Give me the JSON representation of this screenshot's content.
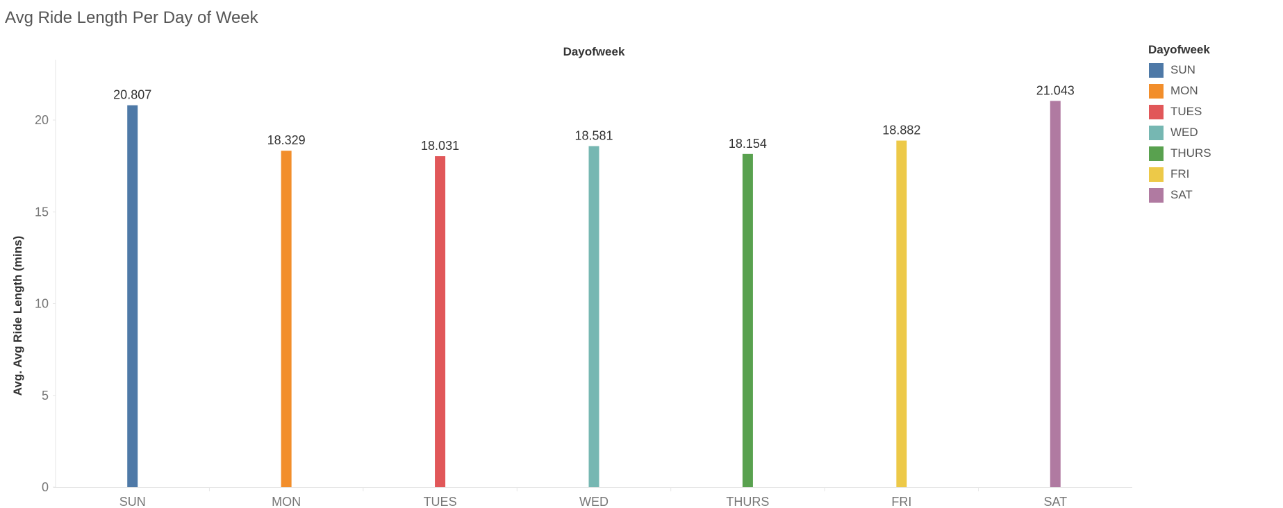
{
  "page": {
    "title": "Avg Ride Length Per Day of Week"
  },
  "colors": {
    "axis": "#e6e6e6",
    "tick_text": "#777777",
    "label_text": "#333333"
  },
  "chart_data": {
    "type": "bar",
    "title": "Avg Ride Length Per Day of Week",
    "column_header": "Dayofweek",
    "xlabel": "",
    "ylabel": "Avg. Avg Ride Length (mins)",
    "ylim": [
      0,
      23
    ],
    "yticks": [
      0,
      5,
      10,
      15,
      20
    ],
    "grid": false,
    "legend_position": "right",
    "categories": [
      "SUN",
      "MON",
      "TUES",
      "WED",
      "THURS",
      "FRI",
      "SAT"
    ],
    "values": [
      20.807,
      18.329,
      18.031,
      18.581,
      18.154,
      18.882,
      21.043
    ],
    "value_labels": [
      "20.807",
      "18.329",
      "18.031",
      "18.581",
      "18.154",
      "18.882",
      "21.043"
    ],
    "colors": [
      "#4e79a7",
      "#f28e2b",
      "#e15759",
      "#76b7b2",
      "#59a14f",
      "#edc948",
      "#b07aa1"
    ]
  },
  "legend": {
    "title": "Dayofweek",
    "items": [
      {
        "label": "SUN",
        "color": "#4e79a7"
      },
      {
        "label": "MON",
        "color": "#f28e2b"
      },
      {
        "label": "TUES",
        "color": "#e15759"
      },
      {
        "label": "WED",
        "color": "#76b7b2"
      },
      {
        "label": "THURS",
        "color": "#59a14f"
      },
      {
        "label": "FRI",
        "color": "#edc948"
      },
      {
        "label": "SAT",
        "color": "#b07aa1"
      }
    ]
  }
}
